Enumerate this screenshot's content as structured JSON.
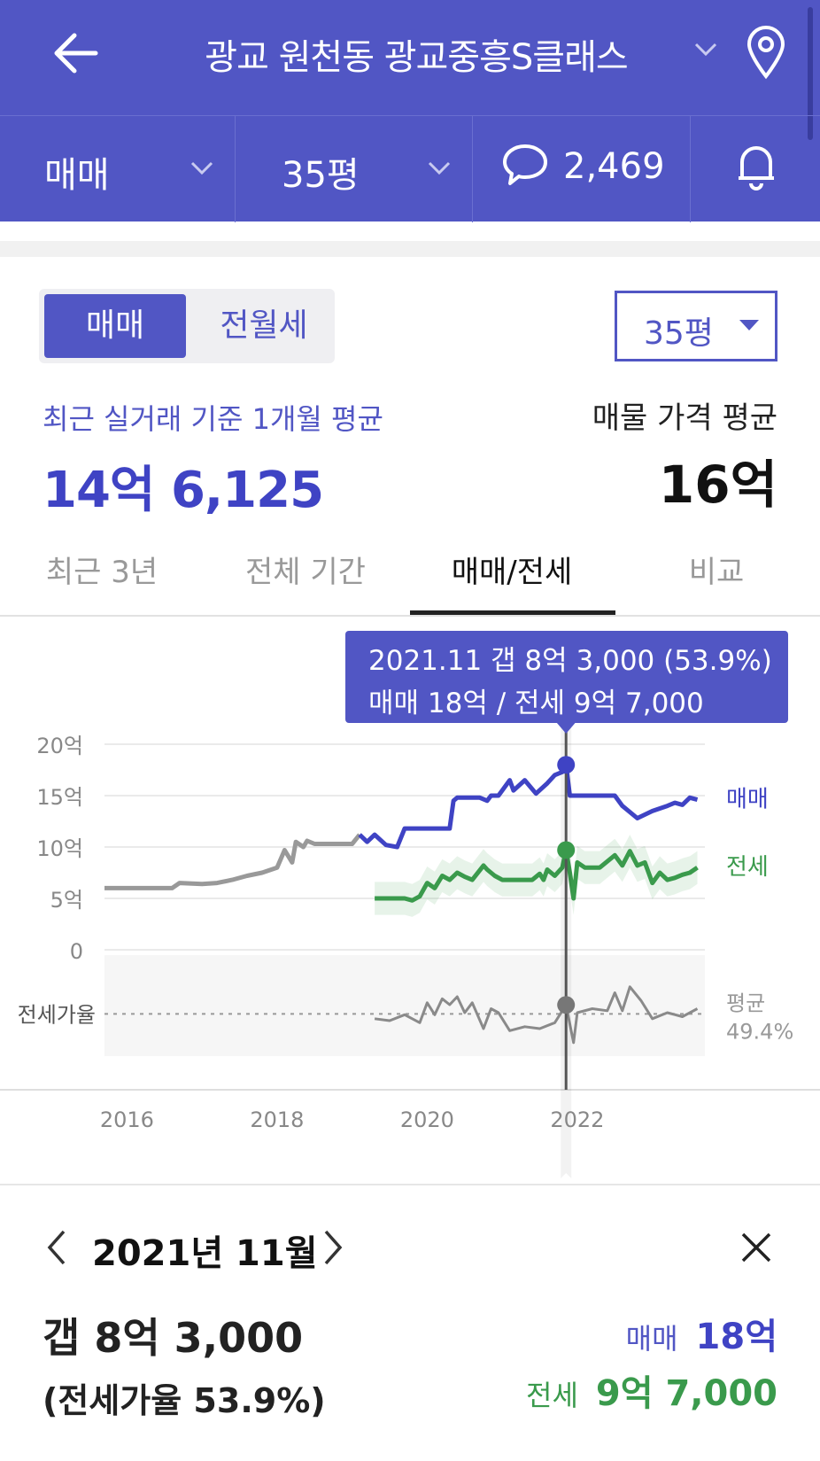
{
  "header": {
    "title": "광교 원천동 광교중흥S클래스",
    "trade_type": "매매",
    "size": "35평",
    "comment_count": "2,469"
  },
  "toggle": {
    "active": "매매",
    "inactive": "전월세"
  },
  "size_select": "35평",
  "summary": {
    "recent_label": "최근 실거래 기준 1개월 평균",
    "recent_value": "14억 6,125",
    "ask_label": "매물 가격 평균",
    "ask_value": "16억"
  },
  "tabs": [
    {
      "label": "최근 3년"
    },
    {
      "label": "전체 기간"
    },
    {
      "label": "매매/전세"
    },
    {
      "label": "비교"
    }
  ],
  "tooltip": {
    "line1": "2021.11  갭 8억 3,000 (53.9%)",
    "line2": "매매 18억 / 전세 9억 7,000"
  },
  "chart_data": {
    "type": "line",
    "y_ticks": [
      "20억",
      "15억",
      "10억",
      "5억",
      "0"
    ],
    "ylim": [
      0,
      20
    ],
    "x_ticks": [
      "2016",
      "2018",
      "2020",
      "2022"
    ],
    "xlim": [
      2015.7,
      2023.7
    ],
    "ratio_label": "전세가율",
    "avg_label": "평균",
    "avg_value": "49.4%",
    "selected_x": 2021.85,
    "colors": {
      "sale": "#3f43c4",
      "jeon": "#3a9a4c",
      "past": "#999999",
      "ratio": "#8a8a8a"
    },
    "series": [
      {
        "name": "매매",
        "x": [
          2015.7,
          2016.2,
          2016.6,
          2016.7,
          2017.0,
          2017.2,
          2017.4,
          2017.6,
          2017.8,
          2018.0,
          2018.1,
          2018.2,
          2018.25,
          2018.35,
          2018.4,
          2018.5,
          2018.7,
          2018.9,
          2019.0,
          2019.1,
          2019.2,
          2019.3,
          2019.45,
          2019.6,
          2019.7,
          2019.8,
          2019.9,
          2020.0,
          2020.3,
          2020.35,
          2020.4,
          2020.7,
          2020.8,
          2020.85,
          2020.95,
          2021.1,
          2021.15,
          2021.3,
          2021.45,
          2021.6,
          2021.7,
          2021.8,
          2021.85,
          2021.9,
          2022.0,
          2022.3,
          2022.5,
          2022.6,
          2022.8,
          2023.0,
          2023.2,
          2023.3,
          2023.4,
          2023.5,
          2023.6
        ],
        "values": [
          6,
          6,
          6,
          6.5,
          6.4,
          6.5,
          6.8,
          7.2,
          7.5,
          8,
          9.7,
          8.5,
          10.5,
          10,
          10.6,
          10.3,
          10.3,
          10.3,
          10.3,
          11.2,
          10.5,
          11.2,
          10.2,
          10,
          11.8,
          11.8,
          11.8,
          11.8,
          11.8,
          14.5,
          14.8,
          14.8,
          14.5,
          15,
          15,
          16.5,
          15.5,
          16.5,
          15.2,
          16.2,
          17,
          17.3,
          18,
          15,
          15,
          15,
          15,
          14,
          12.8,
          13.5,
          14,
          14.3,
          14.1,
          14.8,
          14.6
        ]
      },
      {
        "name": "전세",
        "x": [
          2019.3,
          2019.6,
          2019.7,
          2019.8,
          2019.9,
          2020.0,
          2020.1,
          2020.2,
          2020.3,
          2020.4,
          2020.5,
          2020.6,
          2020.75,
          2020.8,
          2020.9,
          2021.0,
          2021.2,
          2021.4,
          2021.5,
          2021.55,
          2021.6,
          2021.7,
          2021.8,
          2021.85,
          2021.9,
          2021.95,
          2022.0,
          2022.1,
          2022.3,
          2022.5,
          2022.6,
          2022.7,
          2022.8,
          2022.9,
          2023.0,
          2023.1,
          2023.2,
          2023.3,
          2023.4,
          2023.5,
          2023.6
        ],
        "values": [
          5,
          5,
          5,
          4.8,
          5.2,
          6.5,
          6,
          7.2,
          6.8,
          7.5,
          7.1,
          6.8,
          8.2,
          7.8,
          7.2,
          6.8,
          6.8,
          6.8,
          7.4,
          6.8,
          7.8,
          7.2,
          8,
          9.7,
          7.5,
          5,
          8.5,
          8,
          8,
          9.2,
          8.2,
          9.6,
          8.2,
          8.5,
          6.5,
          7.5,
          6.8,
          7,
          7.3,
          7.5,
          8
        ]
      },
      {
        "name": "전세가율",
        "x": [
          2019.3,
          2019.5,
          2019.7,
          2019.9,
          2020.0,
          2020.1,
          2020.2,
          2020.3,
          2020.4,
          2020.5,
          2020.6,
          2020.75,
          2020.85,
          2020.95,
          2021.1,
          2021.3,
          2021.5,
          2021.7,
          2021.85,
          2021.95,
          2022.0,
          2022.2,
          2022.4,
          2022.5,
          2022.6,
          2022.7,
          2022.85,
          2023.0,
          2023.2,
          2023.4,
          2023.6
        ],
        "values": [
          47,
          46,
          49,
          45,
          55,
          49,
          57,
          54,
          58,
          50,
          55,
          42,
          52,
          50,
          41,
          43,
          42,
          45,
          53.9,
          35,
          50,
          52,
          51,
          60,
          51,
          63,
          56,
          47,
          50,
          48,
          52
        ]
      }
    ]
  },
  "detail": {
    "month": "2021년 11월",
    "gap": "갭 8억 3,000",
    "ratio": "(전세가율 53.9%)",
    "sale_label": "매매",
    "sale_value": "18억",
    "jeon_label": "전세",
    "jeon_value": "9억 7,000"
  }
}
